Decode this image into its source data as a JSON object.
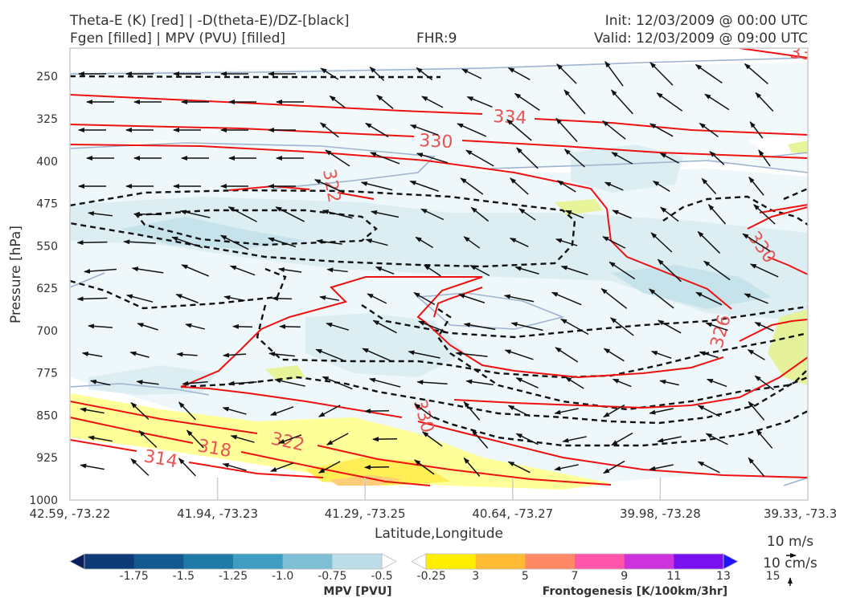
{
  "chart_data": {
    "type": "cross-section",
    "title_left": [
      "Theta-E (K) [red] | -D(theta-E)/DZ-[black]",
      "Fgen [filled] | MPV (PVU) [filled]"
    ],
    "title_center": "FHR:9",
    "title_right": [
      "Init: 12/03/2009 @ 00:00 UTC",
      "Valid: 12/03/2009 @ 09:00 UTC"
    ],
    "xlabel": "Latitude,Longitude",
    "ylabel": "Pressure [hPa]",
    "x_ticks": [
      "42.59, -73.22",
      "41.94, -73.23",
      "41.29, -73.25",
      "40.64, -73.27",
      "39.98, -73.28",
      "39.33, -73.3"
    ],
    "y_ticks": [
      "250",
      "325",
      "400",
      "475",
      "550",
      "625",
      "700",
      "775",
      "850",
      "925",
      "1000"
    ],
    "ylim": [
      1000,
      200
    ],
    "theta_e_labels": [
      "314",
      "318",
      "322",
      "322",
      "326",
      "330",
      "330",
      "334",
      "330",
      "33"
    ],
    "mpv_colorbar": {
      "label": "MPV [PVU]",
      "ticks": [
        "-1.75",
        "-1.5",
        "-1.25",
        "-1.0",
        "-0.75",
        "-0.5",
        "-0.25"
      ],
      "colors": [
        "#0a1e5e",
        "#0f3a78",
        "#13598f",
        "#1f7aa5",
        "#3f9ec0",
        "#7fbfd5",
        "#bddde8",
        "#ffffff"
      ]
    },
    "fgen_colorbar": {
      "label": "Frontogenesis [K/100km/3hr]",
      "ticks": [
        "3",
        "5",
        "7",
        "9",
        "11",
        "13",
        "15"
      ],
      "colors": [
        "#ffffff",
        "#ffee00",
        "#ffbb33",
        "#ff8866",
        "#ff55aa",
        "#cc33dd",
        "#7711ee",
        "#2211ff"
      ]
    },
    "vector_key": [
      "10 m/s",
      "10 cm/s"
    ]
  }
}
